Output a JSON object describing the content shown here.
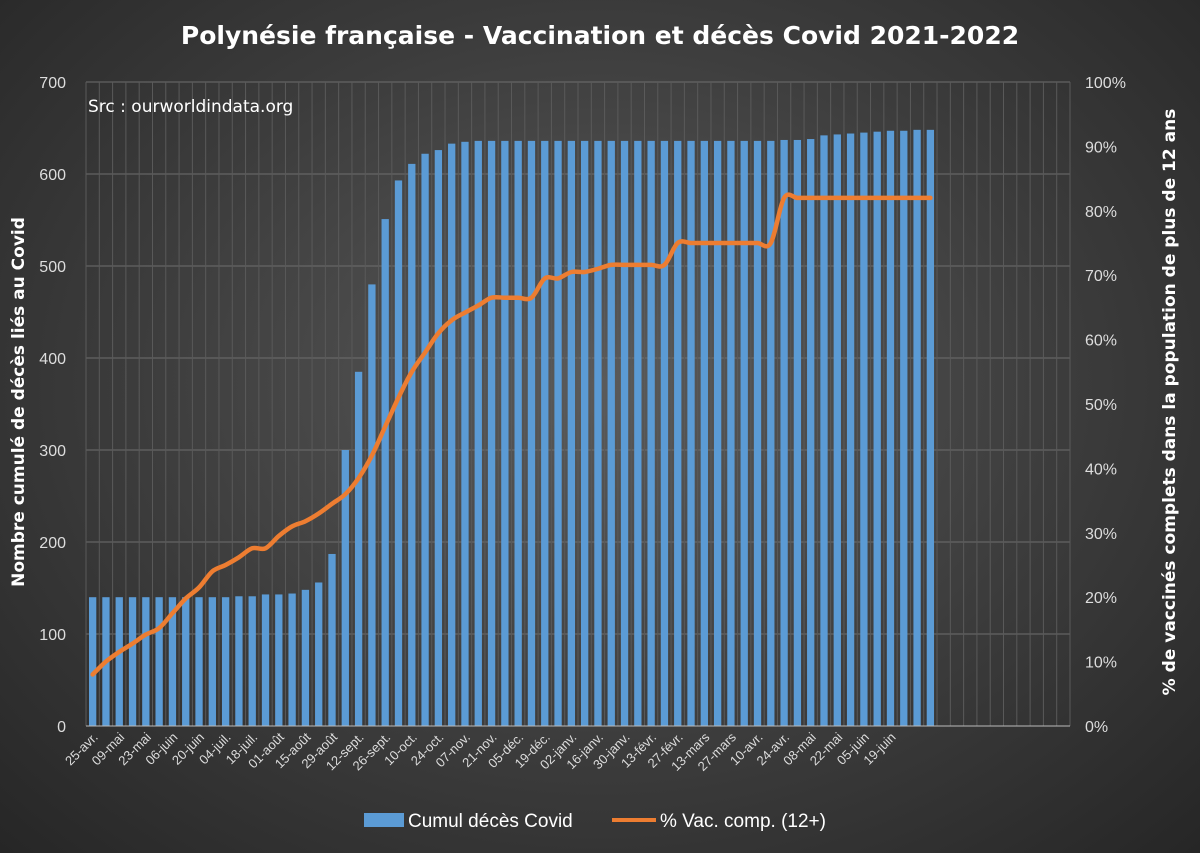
{
  "chart_data": {
    "type": "bar+line",
    "title": "Polynésie française - Vaccination et décès Covid 2021-2022",
    "annotation": "Src : ourworldindata.org",
    "ylabel_left": "Nombre cumulé de décès liés au Covid",
    "ylabel_right": "% de vaccinés complets dans  la population de plus de 12 ans",
    "ylim_left": [
      0,
      700
    ],
    "yticks_left": [
      "0",
      "100",
      "200",
      "300",
      "400",
      "500",
      "600",
      "700"
    ],
    "ylim_right": [
      0,
      100
    ],
    "yticks_right": [
      "0%",
      "10%",
      "20%",
      "30%",
      "40%",
      "50%",
      "60%",
      "70%",
      "80%",
      "90%",
      "100%"
    ],
    "xtick_labels": [
      "25-avr.",
      "09-mai",
      "23-mai",
      "06-juin",
      "20-juin",
      "04-juil.",
      "18-juil.",
      "01-août",
      "15-août",
      "29-août",
      "12-sept.",
      "26-sept.",
      "10-oct.",
      "24-oct.",
      "07-nov.",
      "21-nov.",
      "05-déc.",
      "19-déc.",
      "02-janv.",
      "16-janv.",
      "30-janv.",
      "13-févr.",
      "27-févr.",
      "13-mars",
      "27-mars",
      "10-avr.",
      "24-avr.",
      "08-mai",
      "22-mai",
      "05-juin",
      "19-juin"
    ],
    "bar_series": {
      "name": "Cumul décès Covid",
      "color": "#5b9bd5",
      "values": [
        140,
        140,
        140,
        140,
        140,
        140,
        140,
        140,
        140,
        140,
        140,
        141,
        141,
        143,
        143,
        144,
        148,
        156,
        187,
        300,
        385,
        480,
        551,
        593,
        611,
        622,
        626,
        633,
        635,
        636,
        636,
        636,
        636,
        636,
        636,
        636,
        636,
        636,
        636,
        636,
        636,
        636,
        636,
        636,
        636,
        636,
        636,
        636,
        636,
        636,
        636,
        636,
        637,
        637,
        638,
        642,
        643,
        644,
        645,
        646,
        647,
        647,
        648,
        648
      ]
    },
    "line_series": {
      "name": "% Vac. comp. (12+)",
      "color": "#ed7d31",
      "values": [
        8,
        10,
        11.5,
        12.8,
        14.2,
        15.2,
        17.5,
        19.8,
        21.5,
        24,
        25,
        26.2,
        27.6,
        27.6,
        29.5,
        31,
        31.8,
        33,
        34.5,
        36,
        38.5,
        42,
        46.5,
        51,
        55,
        58,
        61,
        63,
        64.2,
        65.3,
        66.5,
        66.5,
        66.5,
        66.5,
        69.5,
        69.5,
        70.5,
        70.5,
        71,
        71.6,
        71.6,
        71.6,
        71.6,
        71.6,
        75,
        75,
        75,
        75,
        75,
        75,
        75,
        75,
        82,
        82,
        82,
        82,
        82,
        82,
        82,
        82,
        82,
        82,
        82,
        82
      ]
    },
    "grid": true,
    "legend_position": "bottom"
  }
}
